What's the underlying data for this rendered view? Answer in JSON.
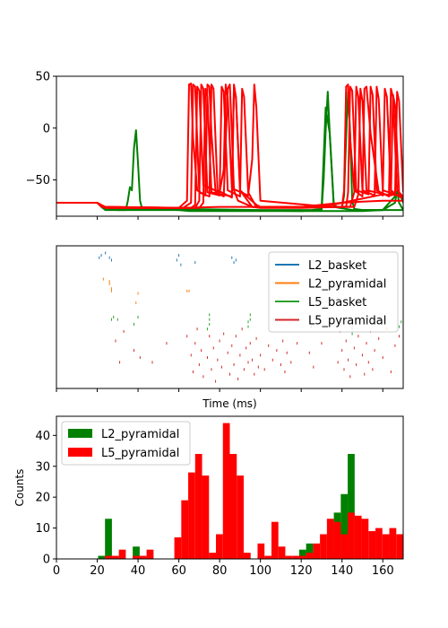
{
  "chart_data": [
    {
      "type": "line",
      "panel": "voltage-traces",
      "title": "",
      "xlabel": "",
      "ylabel": "",
      "xlim": [
        0,
        170
      ],
      "ylim": [
        -85,
        50
      ],
      "yticks": [
        50,
        0,
        -50
      ],
      "xticks": [
        0,
        20,
        40,
        60,
        80,
        100,
        120,
        140,
        160
      ],
      "x_tick_labels_visible": false,
      "grid": false,
      "series": [
        {
          "color": "#008000",
          "x": [
            0,
            20,
            22,
            24,
            26,
            34,
            35,
            36,
            37,
            38,
            39,
            40,
            41,
            42,
            60,
            65,
            120,
            130,
            131,
            132,
            133,
            134,
            136,
            140,
            141,
            142,
            143,
            144,
            145,
            146,
            150,
            160,
            166,
            167,
            168,
            170
          ],
          "y": [
            -72,
            -72,
            -76,
            -79,
            -79,
            -79,
            -70,
            -57,
            -60,
            -20,
            -2,
            -35,
            -70,
            -78,
            -79,
            -80,
            -80,
            -79,
            -50,
            -2,
            35,
            -5,
            -75,
            -77,
            -65,
            -10,
            35,
            -5,
            -70,
            -78,
            -79,
            -79,
            -72,
            -60,
            -72,
            -79
          ]
        },
        {
          "color": "#008000",
          "x": [
            0,
            20,
            24,
            28,
            60,
            100,
            125,
            130,
            132,
            134,
            136,
            145,
            170
          ],
          "y": [
            -72,
            -72,
            -77,
            -78,
            -78,
            -79,
            -79,
            -78,
            20,
            -5,
            -76,
            -79,
            -79
          ]
        },
        {
          "color": "#008000",
          "x": [
            0,
            20,
            24,
            30,
            80,
            120,
            150,
            160,
            165,
            168,
            170
          ],
          "y": [
            -72,
            -72,
            -78,
            -79,
            -79,
            -80,
            -80,
            -79,
            -68,
            -62,
            -72
          ]
        },
        {
          "color": "#ff0000",
          "x": [
            0,
            20,
            22,
            60,
            64,
            65,
            66,
            67,
            69,
            73,
            74,
            75,
            76,
            78,
            82,
            84,
            85,
            86,
            87,
            89,
            96,
            100,
            120,
            140,
            141,
            142,
            143,
            144,
            146,
            150,
            151,
            152,
            154,
            158,
            160,
            161,
            162,
            164,
            168,
            170
          ],
          "y": [
            -72,
            -72,
            -76,
            -77,
            -70,
            42,
            43,
            -10,
            -60,
            -65,
            42,
            40,
            -5,
            -62,
            -66,
            38,
            42,
            -5,
            -60,
            -70,
            -76,
            -77,
            -77,
            -76,
            -60,
            40,
            42,
            -10,
            -60,
            -66,
            38,
            40,
            -5,
            -62,
            -65,
            38,
            30,
            -60,
            -66,
            -68
          ]
        },
        {
          "color": "#ff0000",
          "x": [
            0,
            20,
            23,
            62,
            66,
            67,
            68,
            70,
            75,
            76,
            77,
            79,
            86,
            87,
            88,
            90,
            96,
            142,
            143,
            144,
            145,
            147,
            153,
            154,
            155,
            157,
            163,
            164,
            165,
            167,
            170
          ],
          "y": [
            -72,
            -72,
            -76,
            -77,
            -72,
            42,
            40,
            -62,
            -66,
            42,
            38,
            -60,
            -67,
            42,
            30,
            -60,
            -76,
            -76,
            -62,
            40,
            36,
            -60,
            -64,
            40,
            32,
            -60,
            -66,
            38,
            30,
            -60,
            -68
          ]
        },
        {
          "color": "#ff0000",
          "x": [
            0,
            20,
            24,
            68,
            70,
            71,
            72,
            74,
            80,
            81,
            82,
            84,
            90,
            91,
            92,
            94,
            98,
            144,
            146,
            147,
            148,
            150,
            156,
            157,
            158,
            160,
            166,
            167,
            168,
            170
          ],
          "y": [
            -72,
            -72,
            -77,
            -77,
            -70,
            42,
            38,
            -62,
            -65,
            40,
            35,
            -60,
            -66,
            38,
            30,
            -62,
            -76,
            -76,
            -62,
            40,
            30,
            -60,
            -65,
            40,
            28,
            -60,
            -64,
            35,
            26,
            -62
          ]
        },
        {
          "color": "#ff0000",
          "x": [
            0,
            20,
            24,
            70,
            72,
            73,
            74,
            76,
            86,
            87,
            88,
            90,
            98,
            100,
            146,
            148,
            149,
            150,
            152,
            164,
            165,
            166,
            168,
            170
          ],
          "y": [
            -72,
            -72,
            -77,
            -77,
            -72,
            38,
            30,
            -62,
            -66,
            40,
            30,
            -60,
            -74,
            -76,
            -76,
            -64,
            38,
            26,
            -60,
            -65,
            32,
            22,
            -62,
            -66
          ]
        },
        {
          "color": "#ff0000",
          "x": [
            0,
            20,
            23,
            66,
            68,
            69,
            70,
            72,
            80,
            82,
            83,
            84,
            86,
            94,
            96,
            97,
            98,
            100,
            128,
            136,
            140,
            150,
            160,
            170
          ],
          "y": [
            -72,
            -72,
            -76,
            -77,
            -74,
            40,
            36,
            -55,
            -62,
            -40,
            42,
            30,
            -58,
            -65,
            -30,
            42,
            20,
            -70,
            -75,
            -74,
            -72,
            -68,
            -64,
            -65
          ]
        },
        {
          "color": "#ff0000",
          "x": [
            0,
            20,
            24,
            40,
            60,
            80,
            100,
            120,
            130,
            140,
            150,
            160,
            170
          ],
          "y": [
            -72,
            -72,
            -76,
            -77,
            -77,
            -76,
            -76,
            -76,
            -74,
            -72,
            -71,
            -70,
            -70
          ]
        }
      ]
    },
    {
      "type": "scatter",
      "panel": "spike-raster",
      "title": "",
      "xlabel": "Time (ms)",
      "ylabel": "",
      "xlim": [
        0,
        170
      ],
      "ylim": [
        0,
        60
      ],
      "xticks": [
        0,
        20,
        40,
        60,
        80,
        100,
        120,
        140,
        160
      ],
      "x_tick_labels_visible": false,
      "y_ticks_visible": false,
      "grid": false,
      "legend_position": "top-right",
      "series": [
        {
          "name": "L2_basket",
          "color": "#1f77b4",
          "x": [
            21,
            22,
            24,
            26,
            27,
            59,
            60,
            61,
            68,
            86,
            87,
            88
          ],
          "y": [
            55,
            56,
            57,
            55,
            54,
            54,
            56,
            52,
            53,
            55,
            53,
            54
          ]
        },
        {
          "name": "L2_pyramidal",
          "color": "#ff7f0e",
          "x": [
            23,
            26,
            26,
            27,
            27,
            40,
            39,
            64,
            65
          ],
          "y": [
            46,
            45,
            44,
            42,
            41,
            40,
            36,
            41,
            41
          ]
        },
        {
          "name": "L5_basket",
          "color": "#2ca02c",
          "x": [
            27,
            28,
            30,
            38,
            40,
            74,
            75,
            75,
            75,
            94,
            94,
            95,
            95,
            145,
            145,
            147,
            148,
            168,
            169,
            170
          ],
          "y": [
            29,
            30,
            29,
            27,
            30,
            25,
            27,
            29,
            31,
            26,
            28,
            29,
            31,
            23,
            25,
            27,
            29,
            26,
            28,
            30
          ]
        },
        {
          "name": "L5_pyramidal",
          "color": "#d62728",
          "x": [
            29,
            31,
            33,
            38,
            41,
            47,
            54,
            64,
            66,
            67,
            68,
            69,
            70,
            71,
            72,
            74,
            75,
            76,
            77,
            78,
            79,
            80,
            81,
            82,
            84,
            85,
            86,
            87,
            88,
            89,
            90,
            91,
            92,
            93,
            94,
            95,
            96,
            97,
            98,
            99,
            100,
            102,
            104,
            106,
            108,
            110,
            111,
            112,
            113,
            115,
            118,
            124,
            125,
            126,
            130,
            138,
            139,
            140,
            141,
            142,
            143,
            144,
            145,
            146,
            147,
            148,
            150,
            151,
            152,
            153,
            154,
            155,
            156,
            158,
            160,
            162,
            164,
            166,
            168
          ],
          "y": [
            20,
            11,
            24,
            16,
            13,
            11,
            19,
            22,
            14,
            7,
            19,
            25,
            10,
            16,
            5,
            13,
            22,
            8,
            17,
            3,
            12,
            20,
            9,
            23,
            15,
            6,
            18,
            10,
            22,
            4,
            14,
            25,
            8,
            17,
            11,
            19,
            12,
            6,
            21,
            9,
            14,
            8,
            18,
            12,
            16,
            10,
            20,
            7,
            15,
            11,
            19,
            15,
            26,
            9,
            19,
            11,
            24,
            16,
            8,
            20,
            12,
            5,
            26,
            17,
            10,
            22,
            14,
            6,
            19,
            11,
            24,
            8,
            16,
            21,
            13,
            25,
            7,
            18,
            22
          ]
        }
      ]
    },
    {
      "type": "bar",
      "panel": "spike-histogram",
      "title": "",
      "xlabel": "",
      "ylabel": "Counts",
      "xlim": [
        0,
        170
      ],
      "ylim": [
        0,
        46.2
      ],
      "xticks": [
        0,
        20,
        40,
        60,
        80,
        100,
        120,
        140,
        160
      ],
      "yticks": [
        0,
        10,
        20,
        30,
        40
      ],
      "bin_width": 3.4,
      "grid": false,
      "legend_position": "top-left",
      "series": [
        {
          "name": "L2_pyramidal",
          "color": "#008000",
          "bins": [
            {
              "x0": 20.4,
              "value": 1
            },
            {
              "x0": 23.8,
              "value": 13
            },
            {
              "x0": 37.4,
              "value": 4
            },
            {
              "x0": 119.0,
              "value": 3
            },
            {
              "x0": 122.4,
              "value": 5
            },
            {
              "x0": 136.0,
              "value": 15
            },
            {
              "x0": 139.4,
              "value": 21
            },
            {
              "x0": 142.8,
              "value": 34
            }
          ]
        },
        {
          "name": "L5_pyramidal",
          "color": "#ff0000",
          "bins": [
            {
              "x0": 20.4,
              "value": 0
            },
            {
              "x0": 23.8,
              "value": 1
            },
            {
              "x0": 27.2,
              "value": 1
            },
            {
              "x0": 30.6,
              "value": 3
            },
            {
              "x0": 34.0,
              "value": 0
            },
            {
              "x0": 37.4,
              "value": 1
            },
            {
              "x0": 40.8,
              "value": 1
            },
            {
              "x0": 44.2,
              "value": 3
            },
            {
              "x0": 57.8,
              "value": 7
            },
            {
              "x0": 61.2,
              "value": 19
            },
            {
              "x0": 64.6,
              "value": 28
            },
            {
              "x0": 68.0,
              "value": 34
            },
            {
              "x0": 71.4,
              "value": 27
            },
            {
              "x0": 74.8,
              "value": 2
            },
            {
              "x0": 78.2,
              "value": 8
            },
            {
              "x0": 81.6,
              "value": 44
            },
            {
              "x0": 85.0,
              "value": 34
            },
            {
              "x0": 88.4,
              "value": 27
            },
            {
              "x0": 91.8,
              "value": 2
            },
            {
              "x0": 98.6,
              "value": 5
            },
            {
              "x0": 102.0,
              "value": 1
            },
            {
              "x0": 105.4,
              "value": 12
            },
            {
              "x0": 108.8,
              "value": 4
            },
            {
              "x0": 112.2,
              "value": 1
            },
            {
              "x0": 115.6,
              "value": 1
            },
            {
              "x0": 119.0,
              "value": 1
            },
            {
              "x0": 122.4,
              "value": 2
            },
            {
              "x0": 125.8,
              "value": 5
            },
            {
              "x0": 129.2,
              "value": 8
            },
            {
              "x0": 132.6,
              "value": 13
            },
            {
              "x0": 136.0,
              "value": 12
            },
            {
              "x0": 139.4,
              "value": 8
            },
            {
              "x0": 142.8,
              "value": 15
            },
            {
              "x0": 146.2,
              "value": 14
            },
            {
              "x0": 149.6,
              "value": 13
            },
            {
              "x0": 153.0,
              "value": 9
            },
            {
              "x0": 156.4,
              "value": 10
            },
            {
              "x0": 159.8,
              "value": 8
            },
            {
              "x0": 163.2,
              "value": 10
            },
            {
              "x0": 166.6,
              "value": 8
            }
          ]
        }
      ]
    }
  ]
}
